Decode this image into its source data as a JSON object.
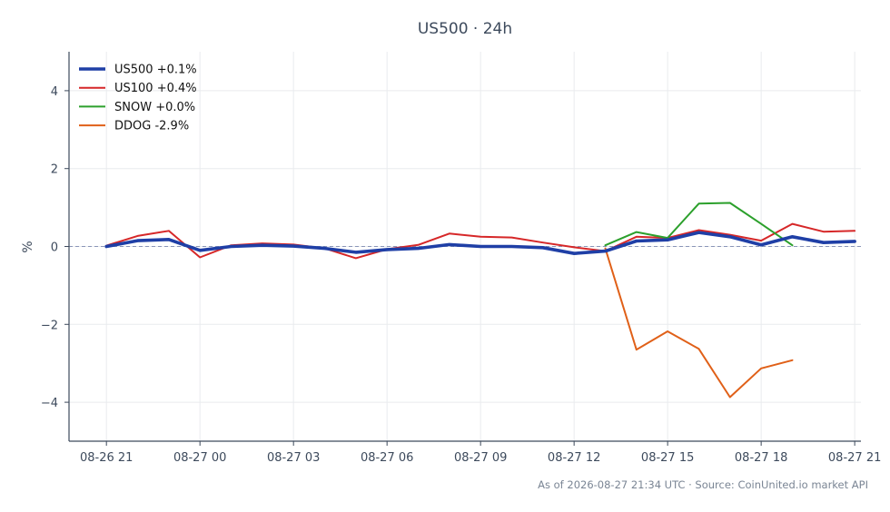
{
  "chart_data": {
    "type": "line",
    "title": "US500 · 24h",
    "xlabel": "",
    "ylabel": "%",
    "ylim": [
      -5,
      5
    ],
    "yticks": [
      -4,
      -2,
      0,
      2,
      4
    ],
    "ytick_labels": [
      "−4",
      "−2",
      "0",
      "2",
      "4"
    ],
    "xlim": [
      -1.2,
      24.2
    ],
    "xtick_positions": [
      0,
      3,
      6,
      9,
      12,
      15,
      18,
      21,
      24
    ],
    "xtick_labels": [
      "08-26 21",
      "08-27 00",
      "08-27 03",
      "08-27 06",
      "08-27 09",
      "08-27 12",
      "08-27 15",
      "08-27 18",
      "08-27 21"
    ],
    "grid": true,
    "zero_line": true,
    "legend_position": "top-left",
    "series": [
      {
        "name": "US500 +0.1%",
        "color": "#1f3fa6",
        "emphasis": true,
        "x": [
          0,
          1,
          2,
          3,
          4,
          5,
          6,
          7,
          8,
          9,
          10,
          11,
          12,
          13,
          14,
          15,
          16,
          17,
          18,
          19,
          20,
          21,
          22,
          23,
          24
        ],
        "values": [
          0.0,
          0.15,
          0.18,
          -0.1,
          0.0,
          0.03,
          0.01,
          -0.05,
          -0.15,
          -0.08,
          -0.05,
          0.05,
          0.0,
          0.0,
          -0.03,
          -0.18,
          -0.12,
          0.14,
          0.17,
          0.36,
          0.25,
          0.04,
          0.25,
          0.1,
          0.13
        ]
      },
      {
        "name": "US100 +0.4%",
        "color": "#d62728",
        "emphasis": false,
        "x": [
          0,
          1,
          2,
          3,
          4,
          5,
          6,
          7,
          8,
          9,
          10,
          11,
          12,
          13,
          14,
          15,
          16,
          17,
          18,
          19,
          20,
          21,
          22,
          23,
          24
        ],
        "values": [
          0.02,
          0.27,
          0.4,
          -0.28,
          0.03,
          0.08,
          0.05,
          -0.05,
          -0.3,
          -0.07,
          0.04,
          0.33,
          0.25,
          0.23,
          0.1,
          -0.02,
          -0.12,
          0.25,
          0.22,
          0.42,
          0.3,
          0.15,
          0.58,
          0.38,
          0.4
        ]
      },
      {
        "name": "SNOW +0.0%",
        "color": "#2ca02c",
        "emphasis": false,
        "x": [
          16,
          17,
          18,
          19,
          20,
          21,
          22
        ],
        "values": [
          0.03,
          0.37,
          0.22,
          1.1,
          1.12,
          0.58,
          0.03
        ]
      },
      {
        "name": "DDOG -2.9%",
        "color": "#e06018",
        "emphasis": false,
        "x": [
          16,
          17,
          18,
          19,
          20,
          21,
          22
        ],
        "values": [
          -0.05,
          -2.65,
          -2.18,
          -2.63,
          -3.87,
          -3.13,
          -2.92
        ]
      }
    ],
    "footer": "As of 2026-08-27 21:34 UTC · Source: CoinUnited.io market API"
  }
}
